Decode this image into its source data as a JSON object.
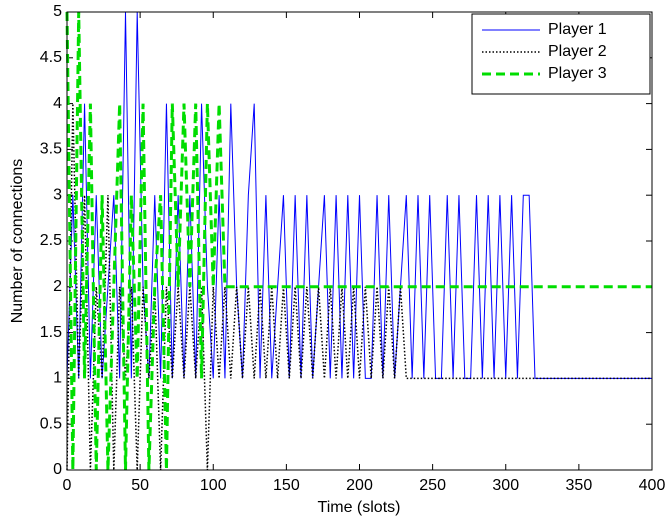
{
  "chart_data": {
    "type": "line",
    "xlabel": "Time (slots)",
    "ylabel": "Number of connections",
    "x": [
      0,
      4,
      8,
      12,
      16,
      20,
      24,
      28,
      32,
      36,
      40,
      44,
      48,
      52,
      56,
      60,
      64,
      68,
      72,
      76,
      80,
      84,
      88,
      92,
      96,
      100,
      104,
      108,
      112,
      116,
      120,
      124,
      128,
      132,
      136,
      140,
      144,
      148,
      152,
      156,
      160,
      164,
      168,
      172,
      176,
      180,
      184,
      188,
      192,
      196,
      200,
      204,
      208,
      212,
      216,
      220,
      224,
      228,
      232,
      236,
      240,
      244,
      248,
      252,
      256,
      260,
      264,
      268,
      272,
      276,
      280,
      284,
      288,
      292,
      296,
      300,
      304,
      308,
      312,
      316,
      320,
      324,
      328,
      332,
      336,
      340,
      344,
      348,
      352,
      356,
      360,
      364,
      368,
      372,
      376,
      380,
      384,
      388,
      392,
      396,
      400
    ],
    "series": [
      {
        "name": "Player 1",
        "color": "#0000ff",
        "linestyle": "solid",
        "width": 1,
        "values": [
          1,
          3,
          1,
          4,
          1,
          3,
          1,
          2,
          3,
          1,
          5,
          1,
          5,
          2,
          1,
          3,
          1,
          4,
          1,
          3,
          1,
          3,
          1,
          4,
          2,
          1,
          3,
          1,
          4,
          2,
          1,
          3,
          4,
          1,
          3,
          1,
          2,
          3,
          1,
          3,
          1,
          3,
          1,
          2,
          3,
          1,
          3,
          1,
          3,
          1,
          3,
          1,
          1,
          3,
          1,
          3,
          1,
          2,
          3,
          1,
          3,
          1,
          3,
          1,
          1,
          3,
          1,
          3,
          1,
          1,
          3,
          1,
          3,
          1,
          3,
          1,
          3,
          1,
          3,
          3,
          1,
          1,
          1,
          1,
          1,
          1,
          1,
          1,
          1,
          1,
          1,
          1,
          1,
          1,
          1,
          1,
          1,
          1,
          1,
          1,
          1
        ]
      },
      {
        "name": "Player 2",
        "color": "#000000",
        "linestyle": "dotted",
        "width": 1.5,
        "values": [
          0,
          4,
          1,
          3,
          0,
          2,
          1,
          3,
          0,
          2,
          1,
          2,
          0,
          2,
          1,
          2,
          0,
          2,
          1,
          2,
          1,
          2,
          1,
          2,
          0,
          2,
          1,
          2,
          1,
          2,
          1,
          2,
          1,
          2,
          1,
          2,
          1,
          2,
          1,
          2,
          1,
          2,
          1,
          2,
          1,
          2,
          1,
          2,
          1,
          2,
          1,
          2,
          1,
          2,
          1,
          2,
          1,
          2,
          1,
          1,
          1,
          1,
          1,
          1,
          1,
          1,
          1,
          1,
          1,
          1,
          1,
          1,
          1,
          1,
          1,
          1,
          1,
          1,
          1,
          1,
          1,
          1,
          1,
          1,
          1,
          1,
          1,
          1,
          1,
          1,
          1,
          1,
          1,
          1,
          1,
          1,
          1,
          1,
          1,
          1,
          1
        ]
      },
      {
        "name": "Player 3",
        "color": "#00dd00",
        "linestyle": "dashed",
        "width": 3,
        "values": [
          5,
          0,
          5,
          1,
          4,
          0,
          3,
          0,
          2,
          4,
          0,
          3,
          1,
          4,
          0,
          2,
          3,
          0,
          4,
          2,
          4,
          2,
          4,
          1,
          4,
          2,
          4,
          2,
          2,
          2,
          2,
          2,
          2,
          2,
          2,
          2,
          2,
          2,
          2,
          2,
          2,
          2,
          2,
          2,
          2,
          2,
          2,
          2,
          2,
          2,
          2,
          2,
          2,
          2,
          2,
          2,
          2,
          2,
          2,
          2,
          2,
          2,
          2,
          2,
          2,
          2,
          2,
          2,
          2,
          2,
          2,
          2,
          2,
          2,
          2,
          2,
          2,
          2,
          2,
          2,
          2,
          2,
          2,
          2,
          2,
          2,
          2,
          2,
          2,
          2,
          2,
          2,
          2,
          2,
          2,
          2,
          2,
          2,
          2,
          2,
          2
        ]
      }
    ],
    "xlim": [
      0,
      400
    ],
    "ylim": [
      0,
      5
    ],
    "xticks": [
      0,
      50,
      100,
      150,
      200,
      250,
      300,
      350,
      400
    ],
    "yticks": [
      0,
      0.5,
      1,
      1.5,
      2,
      2.5,
      3,
      3.5,
      4,
      4.5,
      5
    ],
    "legend": "upper right"
  }
}
